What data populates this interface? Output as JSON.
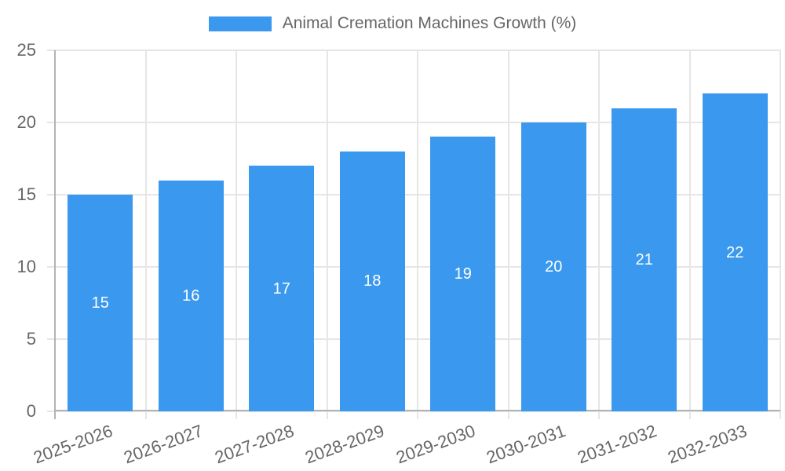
{
  "legend": {
    "label": "Animal Cremation Machines Growth (%)"
  },
  "colors": {
    "background": "#ffffff",
    "bar": "#3a99ee",
    "grid": "#e6e6e6",
    "axis": "#b3b3b3",
    "tick_text": "#666666",
    "bar_label_text": "#ffffff"
  },
  "chart_data": {
    "type": "bar",
    "title": "Animal Cremation Machines Growth (%)",
    "series_name": "Animal Cremation Machines Growth (%)",
    "categories": [
      "2025-2026",
      "2026-2027",
      "2027-2028",
      "2028-2029",
      "2029-2030",
      "2030-2031",
      "2031-2032",
      "2032-2033"
    ],
    "values": [
      15,
      16,
      17,
      18,
      19,
      20,
      21,
      22
    ],
    "xlabel": "",
    "ylabel": "",
    "ylim": [
      0,
      25
    ],
    "yticks": [
      0,
      5,
      10,
      15,
      20,
      25
    ],
    "grid": "on",
    "legend_position": "top-center",
    "x_tick_rotation_deg": -20,
    "bar_value_labels": "inside-center"
  }
}
